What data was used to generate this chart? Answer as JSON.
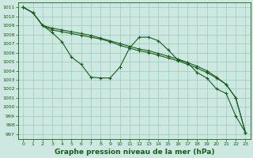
{
  "background_color": "#cce8e0",
  "grid_color": "#99ccbb",
  "line_color": "#1a5c1a",
  "xlabel": "Graphe pression niveau de la mer (hPa)",
  "xlabel_fontsize": 6.5,
  "ylim": [
    996.5,
    1011.5
  ],
  "xlim": [
    -0.5,
    23.5
  ],
  "yticks": [
    997,
    998,
    999,
    1000,
    1001,
    1002,
    1003,
    1004,
    1005,
    1006,
    1007,
    1008,
    1009,
    1010,
    1011
  ],
  "xticks": [
    0,
    1,
    2,
    3,
    4,
    5,
    6,
    7,
    8,
    9,
    10,
    11,
    12,
    13,
    14,
    15,
    16,
    17,
    18,
    19,
    20,
    21,
    22,
    23
  ],
  "lines": [
    {
      "x": [
        0,
        1,
        2,
        3,
        4,
        5,
        6,
        7,
        8,
        9,
        10,
        11,
        12,
        13,
        14,
        15,
        16,
        17,
        18,
        19,
        20,
        21,
        22,
        23
      ],
      "y": [
        1011,
        1010.4,
        1009,
        1008.2,
        1007.2,
        1005.5,
        1004.7,
        1003.3,
        1003.2,
        1003.2,
        1004.4,
        1006.5,
        1007.7,
        1007.7,
        1007.3,
        1006.3,
        1005.2,
        1004.9,
        1003.8,
        1003.2,
        1002.0,
        1001.5,
        999.0,
        997.2
      ]
    },
    {
      "x": [
        0,
        1,
        2,
        3,
        4,
        5,
        6,
        7,
        8,
        9,
        10,
        11,
        12,
        13,
        14,
        15,
        16,
        17,
        18,
        19,
        20,
        21,
        22,
        23
      ],
      "y": [
        1011,
        1010.4,
        1009,
        1008.5,
        1008.3,
        1008.1,
        1007.9,
        1007.7,
        1007.5,
        1007.2,
        1006.8,
        1006.5,
        1006.2,
        1006.0,
        1005.7,
        1005.4,
        1005.1,
        1004.7,
        1004.3,
        1003.8,
        1003.2,
        1002.5,
        1001.0,
        997.2
      ]
    },
    {
      "x": [
        0,
        1,
        2,
        3,
        4,
        5,
        6,
        7,
        8,
        9,
        10,
        11,
        12,
        13,
        14,
        15,
        16,
        17,
        18,
        19,
        20,
        21,
        22,
        23
      ],
      "y": [
        1011,
        1010.4,
        1009,
        1008.7,
        1008.5,
        1008.3,
        1008.1,
        1007.9,
        1007.6,
        1007.3,
        1007.0,
        1006.7,
        1006.4,
        1006.2,
        1005.9,
        1005.6,
        1005.3,
        1004.9,
        1004.5,
        1004.0,
        1003.3,
        1002.5,
        1001.0,
        997.2
      ]
    }
  ]
}
